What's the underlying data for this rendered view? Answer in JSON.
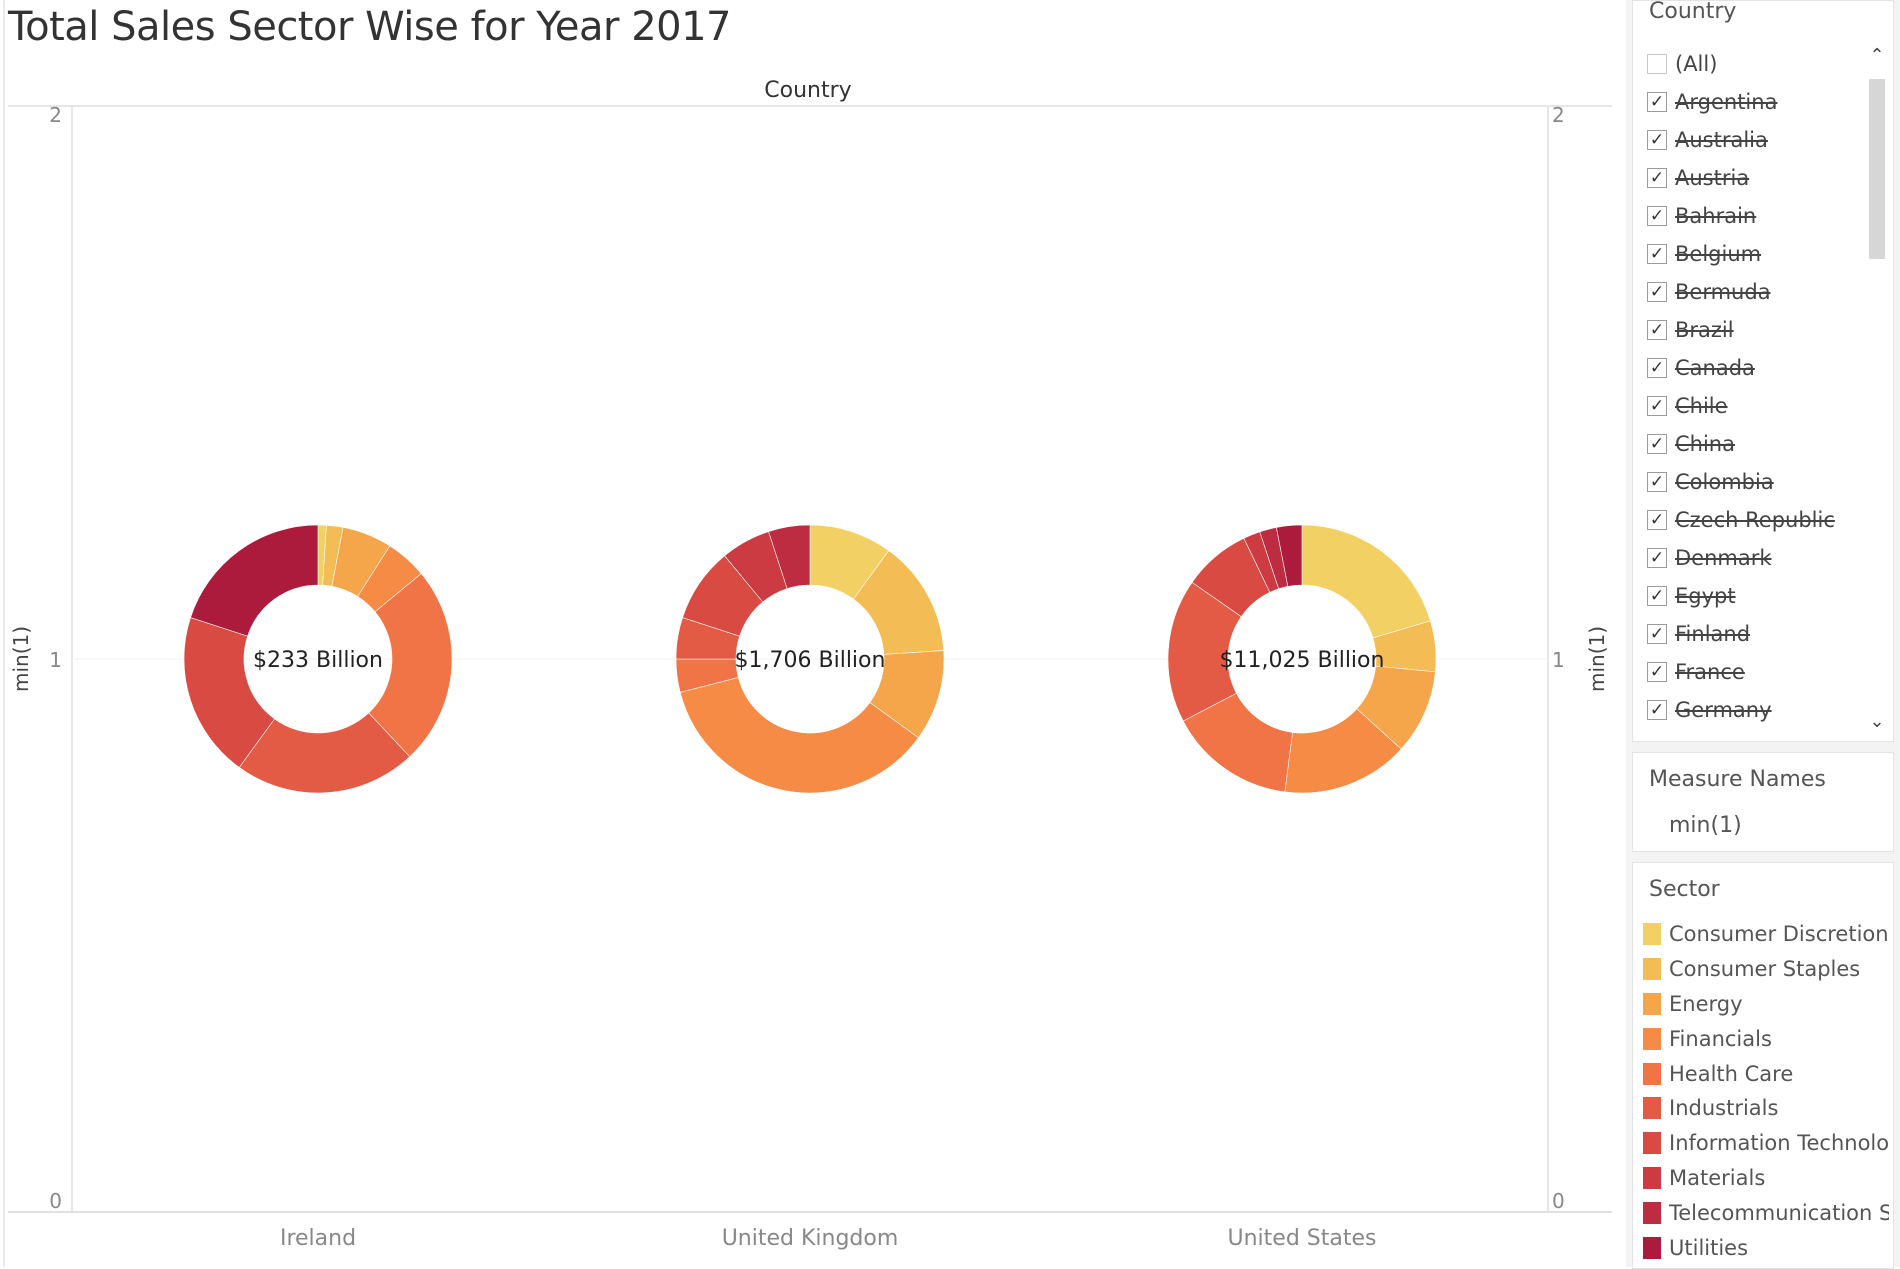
{
  "title": "Total Sales Sector Wise for Year 2017",
  "chart_data": {
    "type": "pie",
    "variant": "donut",
    "title": "Total Sales Sector Wise for Year 2017",
    "column_header": "Country",
    "ylabel": "min(1)",
    "y_ticks": [
      "2",
      "1",
      "0"
    ],
    "ylim": [
      0,
      2
    ],
    "sectors": [
      "Consumer Discretionary",
      "Consumer Staples",
      "Energy",
      "Financials",
      "Health Care",
      "Industrials",
      "Information Technology",
      "Materials",
      "Telecommunication Services",
      "Utilities"
    ],
    "colors": [
      "#f2d063",
      "#f4bc55",
      "#f5a54a",
      "#f68b45",
      "#f07446",
      "#e45b45",
      "#d84a42",
      "#cb3b41",
      "#bd2c40",
      "#ad1b3c"
    ],
    "series": [
      {
        "name": "Ireland",
        "center_label": "$233 Billion",
        "values": [
          1,
          2,
          6,
          5,
          24,
          22,
          20,
          0,
          0,
          20
        ]
      },
      {
        "name": "United Kingdom",
        "center_label": "$1,706 Billion",
        "values": [
          10,
          14,
          11,
          36,
          4,
          5,
          9,
          6,
          5,
          0
        ]
      },
      {
        "name": "United States",
        "center_label": "$11,025 Billion",
        "values": [
          20,
          6,
          10,
          15,
          15,
          17,
          8,
          2,
          2,
          3
        ]
      }
    ]
  },
  "sidebar": {
    "filter_title": "Country",
    "countries": [
      {
        "label": "(All)",
        "checked": false,
        "struck": false
      },
      {
        "label": "Argentina",
        "checked": true,
        "struck": true
      },
      {
        "label": "Australia",
        "checked": true,
        "struck": true
      },
      {
        "label": "Austria",
        "checked": true,
        "struck": true
      },
      {
        "label": "Bahrain",
        "checked": true,
        "struck": true
      },
      {
        "label": "Belgium",
        "checked": true,
        "struck": true
      },
      {
        "label": "Bermuda",
        "checked": true,
        "struck": true
      },
      {
        "label": "Brazil",
        "checked": true,
        "struck": true
      },
      {
        "label": "Canada",
        "checked": true,
        "struck": true
      },
      {
        "label": "Chile",
        "checked": true,
        "struck": true
      },
      {
        "label": "China",
        "checked": true,
        "struck": true
      },
      {
        "label": "Colombia",
        "checked": true,
        "struck": true
      },
      {
        "label": "Czech Republic",
        "checked": true,
        "struck": true
      },
      {
        "label": "Denmark",
        "checked": true,
        "struck": true
      },
      {
        "label": "Egypt",
        "checked": true,
        "struck": true
      },
      {
        "label": "Finland",
        "checked": true,
        "struck": true
      },
      {
        "label": "France",
        "checked": true,
        "struck": true
      },
      {
        "label": "Germany",
        "checked": true,
        "struck": true
      }
    ],
    "measure_title": "Measure Names",
    "measure_item": "min(1)",
    "legend_title": "Sector",
    "legend_items": [
      "Consumer Discretiona..",
      "Consumer Staples",
      "Energy",
      "Financials",
      "Health Care",
      "Industrials",
      "Information Technolo..",
      "Materials",
      "Telecommunication S..",
      "Utilities"
    ]
  }
}
